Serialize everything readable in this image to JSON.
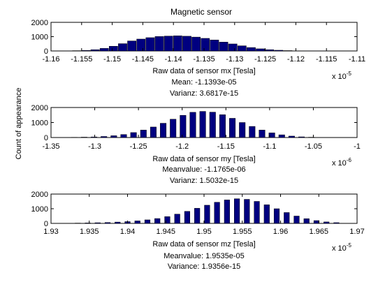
{
  "figure": {
    "title": "Magnetic sensor",
    "shared_ylabel": "Count of appearance"
  },
  "colors": {
    "bar_fill": "#000080",
    "bar_edge": "#000000",
    "axes": "#000000",
    "background": "#ffffff"
  },
  "chart_data": [
    {
      "type": "bar",
      "title": "Magnetic sensor",
      "xlabel": "Raw data of sensor mx [Tesla]",
      "ylabel": "Count of appearance",
      "xlim": [
        -1.16,
        -1.11
      ],
      "ylim": [
        0,
        2000
      ],
      "x_exponent_label": "x 10",
      "x_exponent": "-5",
      "xticks": [
        -1.16,
        -1.155,
        -1.15,
        -1.145,
        -1.14,
        -1.135,
        -1.13,
        -1.125,
        -1.12,
        -1.115,
        -1.11
      ],
      "xtick_labels": [
        "-1.16",
        "-1.155",
        "-1.15",
        "-1.145",
        "-1.14",
        "-1.135",
        "-1.13",
        "-1.125",
        "-1.12",
        "-1.115",
        "-1.11"
      ],
      "yticks": [
        0,
        1000,
        2000
      ],
      "ytick_labels": [
        "0",
        "1000",
        "2000"
      ],
      "grid": false,
      "bar_width": 0.0014,
      "x": [
        -1.1573,
        -1.1558,
        -1.1543,
        -1.1528,
        -1.1513,
        -1.1498,
        -1.1483,
        -1.1468,
        -1.1453,
        -1.1438,
        -1.1423,
        -1.1408,
        -1.1393,
        -1.1378,
        -1.1363,
        -1.1348,
        -1.1333,
        -1.1318,
        -1.1303,
        -1.1288,
        -1.1273,
        -1.1258,
        -1.1243,
        -1.1228,
        -1.1213,
        -1.1198,
        -1.1183,
        -1.1168,
        -1.1153
      ],
      "values": [
        10,
        20,
        40,
        90,
        180,
        330,
        510,
        700,
        830,
        930,
        1010,
        1040,
        1060,
        1030,
        970,
        880,
        770,
        620,
        490,
        360,
        240,
        150,
        90,
        50,
        25,
        12,
        6,
        3,
        2
      ],
      "annotations": [
        "Mean: -1.1393e-05",
        "Varianz: 3.6817e-15"
      ]
    },
    {
      "type": "bar",
      "xlabel": "Raw data of sensor my [Tesla]",
      "xlim": [
        -1.35,
        -1.0
      ],
      "ylim": [
        0,
        2000
      ],
      "x_exponent_label": "x 10",
      "x_exponent": "-6",
      "xticks": [
        -1.35,
        -1.3,
        -1.25,
        -1.2,
        -1.15,
        -1.1,
        -1.05,
        -1.0
      ],
      "xtick_labels": [
        "-1.35",
        "-1.3",
        "-1.25",
        "-1.2",
        "-1.15",
        "-1.1",
        "-1.05",
        "-1"
      ],
      "yticks": [
        0,
        1000,
        2000
      ],
      "ytick_labels": [
        "0",
        "1000",
        "2000"
      ],
      "grid": false,
      "bar_width": 0.0068,
      "x": [
        -1.3347,
        -1.3234,
        -1.3121,
        -1.3008,
        -1.2895,
        -1.2782,
        -1.2669,
        -1.2556,
        -1.2443,
        -1.233,
        -1.2217,
        -1.2104,
        -1.1991,
        -1.1878,
        -1.1765,
        -1.1652,
        -1.1539,
        -1.1426,
        -1.1313,
        -1.12,
        -1.1087,
        -1.0974,
        -1.0861,
        -1.0748,
        -1.0635,
        -1.0522,
        -1.0409
      ],
      "values": [
        10,
        15,
        25,
        40,
        70,
        120,
        200,
        330,
        500,
        700,
        950,
        1220,
        1480,
        1680,
        1740,
        1690,
        1520,
        1280,
        1000,
        740,
        500,
        310,
        180,
        95,
        45,
        20,
        8
      ],
      "annotations": [
        "Meanvalue: -1.1765e-06",
        "Varianz: 1.5032e-15"
      ]
    },
    {
      "type": "bar",
      "xlabel": "Raw data of sensor mz [Tesla]",
      "xlim": [
        1.93,
        1.97
      ],
      "ylim": [
        0,
        2000
      ],
      "x_exponent_label": "x 10",
      "x_exponent": "-5",
      "xticks": [
        1.93,
        1.935,
        1.94,
        1.945,
        1.95,
        1.955,
        1.96,
        1.965,
        1.97
      ],
      "xtick_labels": [
        "1.93",
        "1.935",
        "1.94",
        "1.945",
        "1.95",
        "1.955",
        "1.96",
        "1.965",
        "1.97"
      ],
      "yticks": [
        0,
        1000,
        2000
      ],
      "ytick_labels": [
        "0",
        "1000",
        "2000"
      ],
      "grid": false,
      "bar_width": 0.0007,
      "x": [
        1.9335,
        1.9348,
        1.9361,
        1.9374,
        1.9387,
        1.94,
        1.9413,
        1.9426,
        1.9439,
        1.9452,
        1.9465,
        1.9478,
        1.9491,
        1.9504,
        1.9517,
        1.953,
        1.9543,
        1.9556,
        1.9569,
        1.9582,
        1.9595,
        1.9608,
        1.9621,
        1.9634,
        1.9647,
        1.966,
        1.9673
      ],
      "values": [
        20,
        30,
        45,
        60,
        90,
        120,
        170,
        240,
        330,
        460,
        630,
        820,
        1030,
        1240,
        1440,
        1600,
        1680,
        1640,
        1500,
        1270,
        1000,
        740,
        500,
        320,
        190,
        100,
        50
      ],
      "annotations": [
        "Meanvalue: 1.9535e-05",
        "Variance: 1.9356e-15"
      ]
    }
  ]
}
